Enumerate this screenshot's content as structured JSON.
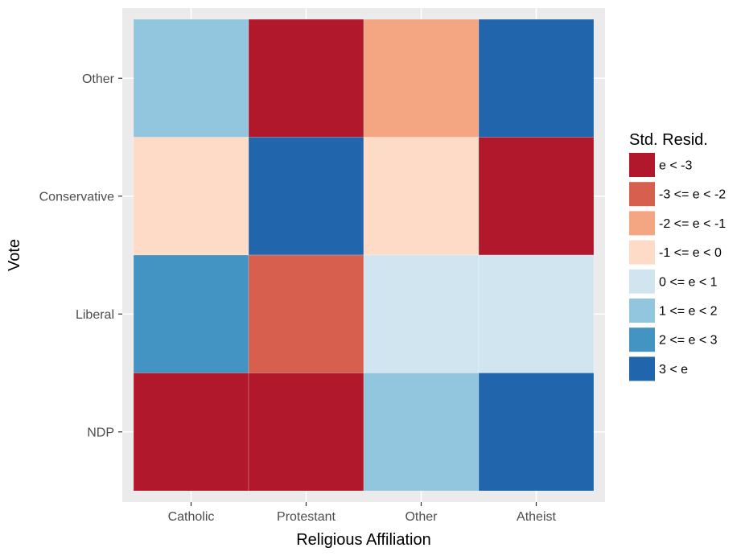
{
  "chart_data": {
    "type": "heatmap",
    "xlabel": "Religious Affiliation",
    "ylabel": "Vote",
    "x_categories": [
      "Catholic",
      "Protestant",
      "Other",
      "Atheist"
    ],
    "y_categories": [
      "NDP",
      "Liberal",
      "Conservative",
      "Other"
    ],
    "grid": true,
    "legend": {
      "title": "Std. Resid.",
      "position": "right",
      "entries": [
        {
          "label": "e < -3",
          "color": "#b2182b"
        },
        {
          "label": "-3 <= e < -2",
          "color": "#d6604d"
        },
        {
          "label": "-2 <= e < -1",
          "color": "#f4a582"
        },
        {
          "label": "-1 <= e < 0",
          "color": "#fddbc7"
        },
        {
          "label": "0 <= e < 1",
          "color": "#d1e5f0"
        },
        {
          "label": "1 <= e < 2",
          "color": "#92c5de"
        },
        {
          "label": "2 <= e < 3",
          "color": "#4393c3"
        },
        {
          "label": "3 < e",
          "color": "#2166ac"
        }
      ]
    },
    "cells": [
      {
        "x": "Catholic",
        "y": "Other",
        "category": "1 <= e < 2"
      },
      {
        "x": "Protestant",
        "y": "Other",
        "category": "e < -3"
      },
      {
        "x": "Other",
        "y": "Other",
        "category": "-2 <= e < -1"
      },
      {
        "x": "Atheist",
        "y": "Other",
        "category": "3 < e"
      },
      {
        "x": "Catholic",
        "y": "Conservative",
        "category": "-1 <= e < 0"
      },
      {
        "x": "Protestant",
        "y": "Conservative",
        "category": "3 < e"
      },
      {
        "x": "Other",
        "y": "Conservative",
        "category": "-1 <= e < 0"
      },
      {
        "x": "Atheist",
        "y": "Conservative",
        "category": "e < -3"
      },
      {
        "x": "Catholic",
        "y": "Liberal",
        "category": "2 <= e < 3"
      },
      {
        "x": "Protestant",
        "y": "Liberal",
        "category": "-3 <= e < -2"
      },
      {
        "x": "Other",
        "y": "Liberal",
        "category": "0 <= e < 1"
      },
      {
        "x": "Atheist",
        "y": "Liberal",
        "category": "0 <= e < 1"
      },
      {
        "x": "Catholic",
        "y": "NDP",
        "category": "e < -3"
      },
      {
        "x": "Protestant",
        "y": "NDP",
        "category": "e < -3"
      },
      {
        "x": "Other",
        "y": "NDP",
        "category": "1 <= e < 2"
      },
      {
        "x": "Atheist",
        "y": "NDP",
        "category": "3 < e"
      }
    ]
  }
}
